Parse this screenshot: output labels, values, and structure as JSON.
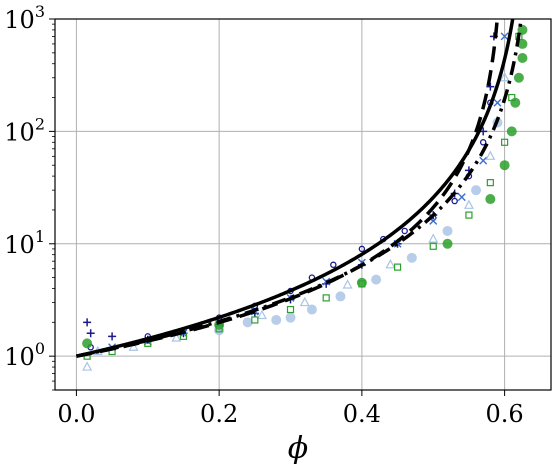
{
  "chart_data": {
    "type": "scatter",
    "title": "",
    "xlabel": "ϕ",
    "ylabel": "",
    "xlim": [
      -0.03,
      0.665
    ],
    "ylim": [
      0.5,
      1000
    ],
    "yscale": "log",
    "grid": true,
    "x_ticks": [
      0.0,
      0.2,
      0.4,
      0.6
    ],
    "x_tick_labels": [
      "0.0",
      "0.2",
      "0.4",
      "0.6"
    ],
    "y_ticks": [
      1,
      10,
      100,
      1000
    ],
    "y_tick_labels": [
      "10",
      "10",
      "10",
      "10"
    ],
    "y_tick_exponents": [
      "0",
      "1",
      "2",
      "3"
    ],
    "colors": {
      "navy": "#1a1a8c",
      "blue": "#3a6fd0",
      "lightblue": "#aac4e6",
      "green": "#2ca02c",
      "black": "#000000",
      "grid": "#b0b0b0"
    },
    "series": [
      {
        "marker": "plus",
        "color": "navy",
        "x": [
          0.015,
          0.02,
          0.05,
          0.1,
          0.15,
          0.2,
          0.25,
          0.3,
          0.35,
          0.4,
          0.45,
          0.5,
          0.53,
          0.55,
          0.57,
          0.58,
          0.585
        ],
        "y": [
          2.0,
          1.6,
          1.5,
          1.4,
          1.6,
          1.9,
          2.4,
          3.2,
          4.4,
          6.5,
          10.0,
          18.0,
          28.0,
          45.0,
          100.0,
          250.0,
          700.0
        ]
      },
      {
        "marker": "circle-open",
        "color": "navy",
        "x": [
          0.02,
          0.1,
          0.2,
          0.25,
          0.3,
          0.33,
          0.36,
          0.4,
          0.43,
          0.46,
          0.5,
          0.53,
          0.55,
          0.57,
          0.58
        ],
        "y": [
          1.2,
          1.5,
          2.2,
          2.8,
          3.8,
          5.0,
          6.5,
          9.0,
          11.0,
          13.0,
          17.0,
          24.0,
          40.0,
          80.0,
          180.0
        ]
      },
      {
        "marker": "x",
        "color": "blue",
        "x": [
          0.05,
          0.1,
          0.15,
          0.2,
          0.25,
          0.3,
          0.35,
          0.4,
          0.45,
          0.5,
          0.54,
          0.57,
          0.59,
          0.6
        ],
        "y": [
          1.2,
          1.35,
          1.6,
          1.95,
          2.5,
          3.3,
          4.6,
          6.8,
          10.0,
          16.0,
          26.0,
          55.0,
          180.0,
          700.0
        ]
      },
      {
        "marker": "triangle-open",
        "color": "lightblue",
        "x": [
          0.015,
          0.03,
          0.08,
          0.14,
          0.2,
          0.26,
          0.32,
          0.38,
          0.44,
          0.5,
          0.55,
          0.58,
          0.6
        ],
        "y": [
          0.8,
          1.1,
          1.2,
          1.45,
          1.8,
          2.3,
          3.0,
          4.3,
          6.5,
          11.0,
          22.0,
          60.0,
          300.0
        ]
      },
      {
        "marker": "circle-filled",
        "color": "lightblue",
        "x": [
          0.2,
          0.24,
          0.28,
          0.3,
          0.33,
          0.37,
          0.42,
          0.47,
          0.52,
          0.56,
          0.59
        ],
        "y": [
          1.7,
          2.0,
          2.1,
          2.2,
          2.6,
          3.4,
          4.8,
          7.5,
          13.0,
          30.0,
          120.0
        ]
      },
      {
        "marker": "square-open",
        "color": "green",
        "x": [
          0.015,
          0.05,
          0.1,
          0.15,
          0.2,
          0.25,
          0.3,
          0.35,
          0.4,
          0.45,
          0.5,
          0.55,
          0.58,
          0.6,
          0.61,
          0.62
        ],
        "y": [
          1.0,
          1.1,
          1.3,
          1.5,
          1.75,
          2.1,
          2.6,
          3.3,
          4.4,
          6.2,
          9.5,
          18.0,
          35.0,
          80.0,
          200.0,
          700.0
        ]
      },
      {
        "marker": "circle-filled",
        "color": "green",
        "x": [
          0.015,
          0.2,
          0.4,
          0.52,
          0.58,
          0.6,
          0.61,
          0.615,
          0.62,
          0.625,
          0.625,
          0.625
        ],
        "y": [
          1.3,
          1.9,
          4.5,
          10.0,
          25.0,
          50.0,
          100.0,
          180.0,
          300.0,
          450.0,
          600.0,
          800.0
        ]
      }
    ],
    "curves": [
      {
        "style": "solid",
        "color": "black",
        "phi_max": 0.635,
        "exponent": 2.1
      },
      {
        "style": "dashed",
        "color": "black",
        "phi_max": 0.6,
        "exponent": 1.7
      },
      {
        "style": "dashdot",
        "color": "black",
        "phi_max": 0.64,
        "exponent": 1.9
      }
    ]
  }
}
